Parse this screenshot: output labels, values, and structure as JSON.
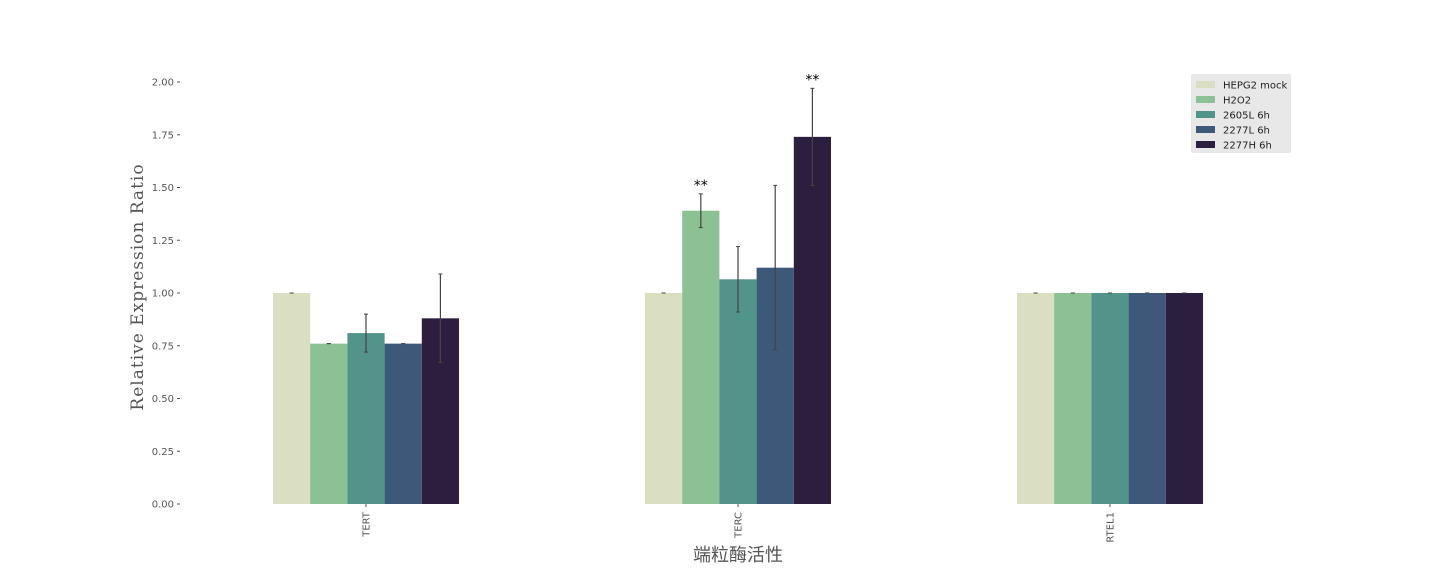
{
  "chart_data": {
    "type": "bar",
    "title": "",
    "xlabel": "端粒酶活性",
    "ylabel": "Relative Expression Ratio",
    "ylim": [
      0,
      2.0
    ],
    "yticks": [
      "0.00",
      "0.25",
      "0.50",
      "0.75",
      "1.00",
      "1.25",
      "1.50",
      "1.75",
      "2.00"
    ],
    "categories": [
      "TERT",
      "TERC",
      "RTEL1"
    ],
    "series": [
      {
        "name": "HEPG2 mock",
        "color": "#d9dfc0",
        "values": [
          1.0,
          1.0,
          1.0
        ],
        "errors": [
          0.0,
          0.0,
          0.0
        ]
      },
      {
        "name": "H2O2",
        "color": "#8cc194",
        "values": [
          0.76,
          1.39,
          1.0
        ],
        "errors": [
          0.0,
          0.08,
          0.0
        ]
      },
      {
        "name": "2605L 6h",
        "color": "#52938a",
        "values": [
          0.81,
          1.065,
          1.0
        ],
        "errors": [
          0.09,
          0.155,
          0.0
        ]
      },
      {
        "name": "2277L 6h",
        "color": "#3d5878",
        "values": [
          0.76,
          1.12,
          1.0
        ],
        "errors": [
          0.0,
          0.39,
          0.0
        ]
      },
      {
        "name": "2277H 6h",
        "color": "#2b1e3e",
        "values": [
          0.88,
          1.74,
          1.0
        ],
        "errors": [
          0.21,
          0.23,
          0.0
        ]
      }
    ],
    "annotations": [
      {
        "category": "TERC",
        "series": "H2O2",
        "text": "**"
      },
      {
        "category": "TERC",
        "series": "2277H 6h",
        "text": "**"
      }
    ],
    "legend_position": "top-right",
    "grid": false
  }
}
